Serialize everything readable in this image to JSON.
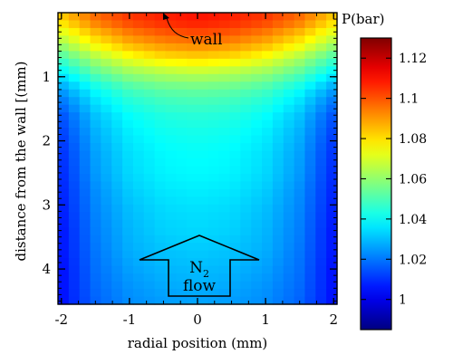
{
  "chart_data": {
    "type": "heatmap",
    "title": "",
    "xlabel": "radial position (mm)",
    "ylabel": "distance from the wall [(mm)",
    "xlim": [
      -2.05,
      2.05
    ],
    "ylim": [
      0,
      4.55
    ],
    "y_inverted": true,
    "x_ticks": [
      "-2",
      "-1",
      "0",
      "1",
      "2"
    ],
    "x_tick_values": [
      -2,
      -1,
      0,
      1,
      2
    ],
    "y_ticks": [
      "1",
      "2",
      "3",
      "4"
    ],
    "y_tick_values": [
      1,
      2,
      3,
      4
    ],
    "colorbar": {
      "title": "P(bar)",
      "range": [
        0.985,
        1.13
      ],
      "ticks": [
        "1",
        "1.02",
        "1.04",
        "1.06",
        "1.08",
        "1.1",
        "1.12"
      ],
      "tick_values": [
        1.0,
        1.02,
        1.04,
        1.06,
        1.08,
        1.1,
        1.12
      ],
      "colormap": "jet"
    },
    "x_positions_mm": [
      -2.0,
      -1.5,
      -1.0,
      -0.5,
      0.0,
      0.5,
      1.0,
      1.5,
      2.0
    ],
    "y_positions_mm": [
      0.0,
      0.15,
      0.3,
      0.5,
      0.7,
      0.9,
      1.1,
      1.3,
      1.6,
      1.9,
      2.2,
      2.5,
      2.8,
      3.1,
      3.4,
      3.7,
      4.0,
      4.3,
      4.55
    ],
    "values": [
      [
        1.085,
        1.098,
        1.105,
        1.108,
        1.11,
        1.108,
        1.105,
        1.098,
        1.085
      ],
      [
        1.08,
        1.094,
        1.102,
        1.106,
        1.108,
        1.106,
        1.102,
        1.094,
        1.08
      ],
      [
        1.072,
        1.086,
        1.095,
        1.1,
        1.102,
        1.1,
        1.095,
        1.086,
        1.072
      ],
      [
        1.062,
        1.076,
        1.086,
        1.091,
        1.093,
        1.091,
        1.086,
        1.076,
        1.062
      ],
      [
        1.05,
        1.064,
        1.074,
        1.08,
        1.082,
        1.08,
        1.074,
        1.064,
        1.05
      ],
      [
        1.04,
        1.054,
        1.063,
        1.067,
        1.069,
        1.067,
        1.063,
        1.054,
        1.04
      ],
      [
        1.03,
        1.044,
        1.053,
        1.057,
        1.058,
        1.057,
        1.053,
        1.044,
        1.03
      ],
      [
        1.022,
        1.037,
        1.046,
        1.05,
        1.051,
        1.05,
        1.046,
        1.037,
        1.022
      ],
      [
        1.015,
        1.031,
        1.04,
        1.044,
        1.045,
        1.044,
        1.04,
        1.031,
        1.015
      ],
      [
        1.012,
        1.028,
        1.037,
        1.041,
        1.042,
        1.041,
        1.037,
        1.028,
        1.012
      ],
      [
        1.01,
        1.026,
        1.035,
        1.039,
        1.04,
        1.039,
        1.035,
        1.026,
        1.01
      ],
      [
        1.009,
        1.025,
        1.034,
        1.038,
        1.039,
        1.038,
        1.034,
        1.025,
        1.009
      ],
      [
        1.008,
        1.023,
        1.032,
        1.036,
        1.037,
        1.036,
        1.032,
        1.023,
        1.008
      ],
      [
        1.007,
        1.022,
        1.03,
        1.034,
        1.035,
        1.034,
        1.03,
        1.022,
        1.007
      ],
      [
        1.006,
        1.021,
        1.029,
        1.033,
        1.034,
        1.033,
        1.029,
        1.021,
        1.006
      ],
      [
        1.006,
        1.02,
        1.028,
        1.031,
        1.032,
        1.031,
        1.028,
        1.02,
        1.006
      ],
      [
        1.005,
        1.019,
        1.026,
        1.029,
        1.03,
        1.029,
        1.026,
        1.019,
        1.005
      ],
      [
        1.005,
        1.018,
        1.024,
        1.027,
        1.028,
        1.027,
        1.024,
        1.018,
        1.005
      ],
      [
        1.005,
        1.017,
        1.023,
        1.025,
        1.026,
        1.025,
        1.023,
        1.017,
        1.005
      ]
    ],
    "annotations": {
      "wall": "wall",
      "flow_n": "N",
      "flow_sub": "2",
      "flow_word": "flow"
    }
  }
}
